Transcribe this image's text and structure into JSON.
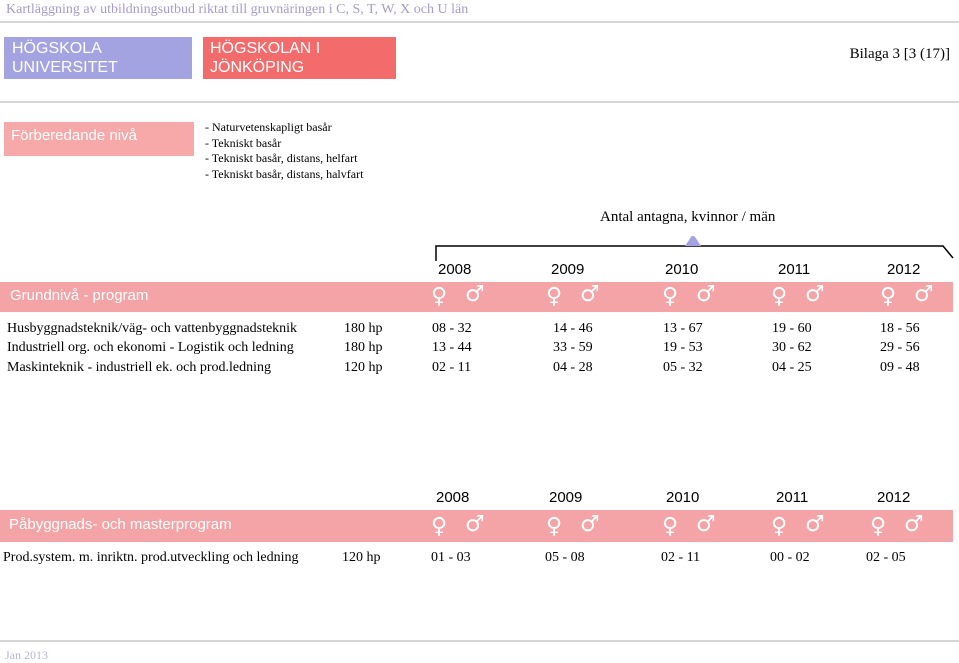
{
  "header": {
    "title": "Kartläggning av utbildningsutbud riktat till gruvnäringen i C, S, T, W, X och U län",
    "logo_left": [
      "HÖGSKOLA",
      "UNIVERSITET"
    ],
    "logo_right": [
      "HÖGSKOLAN I",
      "JÖNKÖPING"
    ],
    "page_label": "Bilaga 3 [3 (17)]"
  },
  "preparatory": {
    "label": "Förberedande nivå",
    "items": [
      "- Naturvetenskapligt basår",
      "- Tekniskt basår",
      "- Tekniskt basår, distans, helfart",
      "- Tekniskt basår, distans, halvfart"
    ]
  },
  "chart_caption": "Antal antagna, kvinnor / män",
  "symbols": {
    "female": "♀",
    "male": "♂"
  },
  "colors": {
    "band": "#f4a4a6",
    "logo_left": "#a3a3e2",
    "logo_right": "#f46b6b",
    "marker": "#a3a3e2"
  },
  "basic": {
    "label": "Grundnivå - program",
    "years": [
      "2008",
      "2009",
      "2010",
      "2011",
      "2012"
    ],
    "rows": [
      {
        "name": "Husbyggnadsteknik/väg- och vattenbyggnadsteknik",
        "credits": "180 hp",
        "values": [
          "08 - 32",
          "14 - 46",
          "13 - 67",
          "19 - 60",
          "18 - 56"
        ]
      },
      {
        "name": "Industriell org. och ekonomi - Logistik och ledning",
        "credits": "180 hp",
        "values": [
          "13 - 44",
          "33 - 59",
          "19 - 53",
          "30 - 62",
          "29 - 56"
        ]
      },
      {
        "name": "Maskinteknik - industriell ek. och prod.ledning",
        "credits": "120 hp",
        "values": [
          "02 - 11",
          "04 - 28",
          "05 - 32",
          "04 - 25",
          "09 - 48"
        ]
      }
    ]
  },
  "advanced": {
    "label": "Påbyggnads- och masterprogram",
    "years": [
      "2008",
      "2009",
      "2010",
      "2011",
      "2012"
    ],
    "rows": [
      {
        "name": "Prod.system. m. inriktn. prod.utveckling och ledning",
        "credits": "120 hp",
        "values": [
          "01 - 03",
          "05 - 08",
          "02 - 11",
          "00 - 02",
          "02 - 05"
        ]
      }
    ]
  },
  "footer": "Jan 2013"
}
